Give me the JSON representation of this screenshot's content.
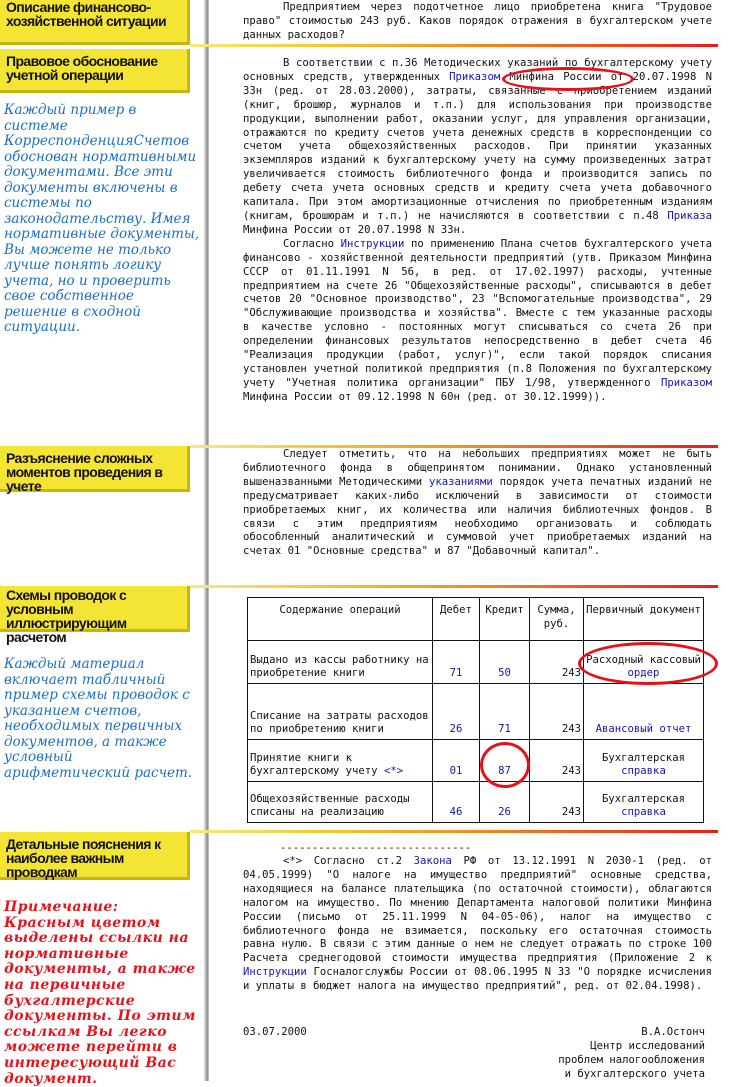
{
  "sidebar": {
    "labels": [
      "Описание финансово-хозяйственной ситуации",
      "Правовое обоснование учетной операции",
      "Разъяснение сложных моментов проведения в учете",
      "Схемы проводок с условным иллюстрирующим расчетом",
      "Детальные пояснения к наиболее важным проводкам"
    ],
    "note_1": "Каждый пример в системе КорреспонденцияСчетов обоснован нормативными документами. Все эти документы включены в системы по законодательству. Имея нормативные документы, Вы можете не только лучше понять логику учета, но и проверить свое собственное решение в сходной ситуации.",
    "note_2": "Каждый материал включает табличный пример схемы проводок с указанием счетов, необходимых первичных документов, а также условный арифметический расчет.",
    "note_3": "Примечание: Красным цветом выделены ссылки на нормативные документы, а также на первичные бухгалтерские документы. По этим ссылкам Вы легко можете перейти в интересующий Вас документ."
  },
  "paragraphs": {
    "situation": [
      {
        "t": "Предприятием через подотчетное лицо приобретена книга \"Трудовое право\" стоимостью 243 руб. Каков порядок отражения в бухгалтерском учете данных расходов?"
      }
    ],
    "legal_1": [
      {
        "t": "В соответствии с п.36 Методических указаний по бухгалтерскому учету основных средств, утвержденных "
      },
      {
        "t": "Приказом",
        "link": true
      },
      {
        "t": " Минфина России от 20.07.1998 N 33н (ред. от 28.03.2000), затраты, связанные с приобретением изданий (книг, брошюр, журналов и т.п.) для использования при производстве продукции, выполнении работ, оказании услуг, для управления организации, отражаются по кредиту счетов учета денежных средств в корреспонденции со счетом учета общехозяйственных расходов. При принятии указанных экземпляров изданий к бухгалтерскому учету на сумму произведенных затрат увеличивается стоимость библиотечного фонда и производится запись по дебету счета учета основных средств и кредиту счета учета добавочного капитала. При этом амортизационные отчисления по приобретенным изданиям (книгам, брошюрам и т.п.) не начисляются в соответствии с п.48 "
      },
      {
        "t": "Приказа",
        "link": true
      },
      {
        "t": " Минфина России от 20.07.1998 N 33н."
      }
    ],
    "legal_2": [
      {
        "t": "Согласно "
      },
      {
        "t": "Инструкции",
        "link": true
      },
      {
        "t": " по применению Плана счетов бухгалтерского учета финансово - хозяйственной деятельности предприятий (утв. Приказом Минфина СССР от 01.11.1991 N 56, в ред. от 17.02.1997) расходы, учтенные предприятием на счете 26 \"Общехозяйственные расходы\", списываются в дебет счетов 20 \"Основное производство\", 23 \"Вспомогательные производства\", 29 \"Обслуживающие производства и хозяйства\". Вместе с тем указанные расходы в качестве условно - постоянных могут списываться со счета 26 при определении финансовых результатов непосредственно в дебет счета 46 \"Реализация продукции (работ, услуг)\", если такой порядок списания установлен учетной политикой предприятия (п.8 Положения по бухгалтерскому учету \"Учетная политика организации\" ПБУ 1/98, утвержденного "
      },
      {
        "t": "Приказом",
        "link": true
      },
      {
        "t": " Минфина России от 09.12.1998 N 60н (ред. от 30.12.1999))."
      }
    ],
    "explain": [
      {
        "t": "Следует отметить, что на небольших предприятиях может не быть библиотечного фонда в общепринятом понимании. Однако установленный вышеназванными Методическими "
      },
      {
        "t": "указаниями",
        "link": true
      },
      {
        "t": " порядок учета печатных изданий не предусматривает каких-либо исключений в зависимости от стоимости приобретаемых книг, их количества или наличия библиотечных фондов. В связи с этим предприятиям необходимо организовать и соблюдать обособленный аналитический и суммовой учет приобретаемых изданий на счетах 01 \"Основные средства\" и 87 \"Добавочный капитал\"."
      }
    ],
    "footnote": [
      {
        "t": "<*> Согласно ст.2 "
      },
      {
        "t": "Закона",
        "link": true
      },
      {
        "t": " РФ от 13.12.1991 N 2030-1 (ред. от 04.05.1999) \"О налоге на имущество предприятий\" основные средства, находящиеся на балансе плательщика (по остаточной стоимости), облагаются налогом на имущество. По мнению Департамента налоговой политики Минфина России (письмо от 25.11.1999 N 04-05-06), налог на имущество с библиотечного фонда не взимается, поскольку его остаточная стоимость равна нулю. В связи с этим данные о нем не следует отражать по строке 100 Расчета среднегодовой стоимости имущества предприятия (Приложение 2 к "
      },
      {
        "t": "Инструкции",
        "link": true
      },
      {
        "t": " Госналогслужбы России от 08.06.1995 N 33 \"О порядке исчисления и уплаты в бюджет налога на имущество предприятий\", ред. от 02.04.1998)."
      }
    ]
  },
  "table": {
    "headers": [
      "Содержание операций",
      "Дебет",
      "Кредит",
      "Сумма, руб.",
      "Первичный документ"
    ],
    "rows": [
      {
        "op": "Выдано из кассы работнику на приобретение книги",
        "op_link": "",
        "debit": "71",
        "credit": "50",
        "sum": "243",
        "doc_text": "Расходный кассовый ",
        "doc_link": "ордер"
      },
      {
        "op": "Списание на затраты расходов по приобретению книги",
        "op_link": "",
        "debit": "26",
        "credit": "71",
        "sum": "243",
        "doc_text": "",
        "doc_link": "Авансовый отчет"
      },
      {
        "op": "Принятие книги к бухгалтерскому учету ",
        "op_link": "<*>",
        "debit": "01",
        "credit": "87",
        "sum": "243",
        "doc_text": "Бухгалтерская ",
        "doc_link": "справка"
      },
      {
        "op": "Общехозяйственные расходы списаны на реализацию",
        "op_link": "",
        "debit": "46",
        "credit": "26",
        "sum": "243",
        "doc_text": "Бухгалтерская ",
        "doc_link": "справка"
      }
    ]
  },
  "footer": {
    "separator": "------------------------------",
    "date": "03.07.2000",
    "author": "В.А.Остонч",
    "org_lines": [
      "Центр исследований",
      "проблем налогообложения",
      "и бухгалтерского учета"
    ]
  },
  "colors": {
    "label_bg": "#f4e434",
    "link": "#1414b4",
    "highlight": "#e8101a",
    "note_blue": "#1b6fc4",
    "note_red": "#e8121a"
  }
}
